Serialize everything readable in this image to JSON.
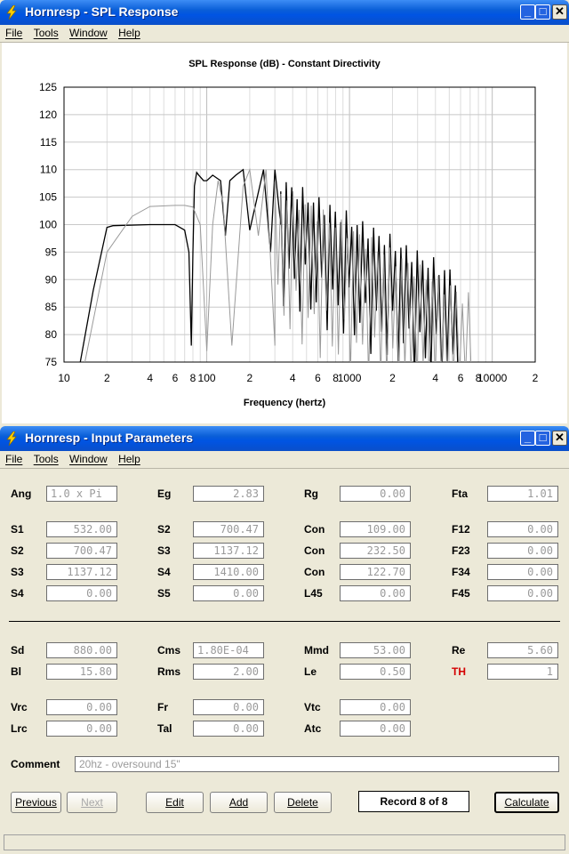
{
  "spl_window": {
    "title": "Hornresp - SPL Response",
    "menu": [
      "File",
      "Tools",
      "Window",
      "Help"
    ],
    "chart_title": "SPL Response (dB) - Constant Directivity",
    "x_label": "Frequency (hertz)"
  },
  "chart_data": {
    "type": "line",
    "title": "SPL Response (dB) - Constant Directivity",
    "xlabel": "Frequency (hertz)",
    "ylabel": "",
    "x_scale": "log",
    "xlim": [
      10,
      20000
    ],
    "ylim": [
      75,
      125
    ],
    "y_ticks": [
      "125",
      "120",
      "115",
      "110",
      "105",
      "100",
      "95",
      "90",
      "85",
      "80",
      "75"
    ],
    "x_ticks": [
      "10",
      "2",
      "4",
      "6",
      "8",
      "100",
      "2",
      "4",
      "6",
      "8",
      "1000",
      "2",
      "4",
      "6",
      "8",
      "10000",
      "2"
    ],
    "grid": true,
    "series": [
      {
        "color": "#000000",
        "x": [
          13,
          16,
          20,
          22,
          40,
          60,
          70,
          75,
          78,
          80,
          82,
          85,
          88,
          95,
          100,
          110,
          125,
          135,
          145,
          160,
          180,
          200,
          250,
          280,
          300,
          330
        ],
        "y": [
          75,
          88,
          99.5,
          99.8,
          100,
          100,
          99,
          95,
          78,
          95,
          107,
          109.5,
          109,
          108,
          108,
          109,
          108,
          98,
          108,
          109,
          110,
          99,
          110,
          95,
          110,
          100
        ]
      },
      {
        "color": "#9a9a9a",
        "x": [
          14,
          20,
          30,
          40,
          60,
          70,
          80,
          90,
          100,
          110,
          120,
          130,
          150,
          180,
          200,
          230,
          260,
          300
        ],
        "y": [
          75,
          95,
          101.5,
          103.3,
          103.5,
          103.5,
          103.2,
          100,
          77,
          100,
          108,
          104,
          78,
          107,
          110,
          98,
          110,
          78
        ]
      }
    ]
  },
  "input_window": {
    "title": "Hornresp - Input Parameters",
    "menu": [
      "File",
      "Tools",
      "Window",
      "Help"
    ],
    "rows": [
      [
        [
          "Ang",
          "1.0 x Pi",
          "left"
        ],
        [
          "Eg",
          "2.83"
        ],
        [
          "Rg",
          "0.00"
        ],
        [
          "Fta",
          "1.01"
        ]
      ],
      [
        [
          "S1",
          "532.00"
        ],
        [
          "S2",
          "700.47"
        ],
        [
          "Con",
          "109.00"
        ],
        [
          "F12",
          "0.00"
        ]
      ],
      [
        [
          "S2",
          "700.47"
        ],
        [
          "S3",
          "1137.12"
        ],
        [
          "Con",
          "232.50"
        ],
        [
          "F23",
          "0.00"
        ]
      ],
      [
        [
          "S3",
          "1137.12"
        ],
        [
          "S4",
          "1410.00"
        ],
        [
          "Con",
          "122.70"
        ],
        [
          "F34",
          "0.00"
        ]
      ],
      [
        [
          "S4",
          "0.00"
        ],
        [
          "S5",
          "0.00"
        ],
        [
          "L45",
          "0.00"
        ],
        [
          "F45",
          "0.00"
        ]
      ],
      [
        [
          "Sd",
          "880.00"
        ],
        [
          "Cms",
          "1.80E-04",
          "left"
        ],
        [
          "Mmd",
          "53.00"
        ],
        [
          "Re",
          "5.60"
        ]
      ],
      [
        [
          "Bl",
          "15.80"
        ],
        [
          "Rms",
          "2.00"
        ],
        [
          "Le",
          "0.50"
        ],
        [
          "TH",
          "1"
        ]
      ],
      [
        [
          "Vrc",
          "0.00"
        ],
        [
          "Fr",
          "0.00"
        ],
        [
          "Vtc",
          "0.00"
        ]
      ],
      [
        [
          "Lrc",
          "0.00"
        ],
        [
          "Tal",
          "0.00"
        ],
        [
          "Atc",
          "0.00"
        ]
      ]
    ],
    "comment_label": "Comment",
    "comment_value": "20hz - oversound 15\"",
    "buttons": {
      "previous": "Previous",
      "next": "Next",
      "edit": "Edit",
      "add": "Add",
      "delete": "Delete",
      "calculate": "Calculate"
    },
    "record": "Record 8 of 8"
  }
}
